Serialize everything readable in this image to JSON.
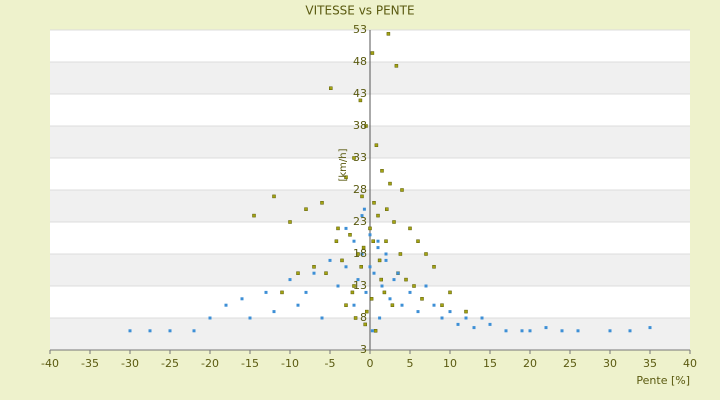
{
  "chart_data": {
    "type": "scatter",
    "title": "VITESSE vs PENTE",
    "x_label": "Pente [%]",
    "y_label": "[km/h]",
    "xlim": [
      -40,
      40
    ],
    "xticks": [
      -40,
      -35,
      -30,
      -25,
      -20,
      -15,
      -10,
      -5,
      0,
      5,
      10,
      15,
      20,
      25,
      30,
      35,
      40
    ],
    "ylim": [
      3,
      53
    ],
    "yticks": [
      3,
      8,
      13,
      18,
      23,
      28,
      33,
      38,
      43,
      48,
      53
    ],
    "series": [
      {
        "color": "#a3a312",
        "x": [
          2.3,
          0.3,
          3.3,
          -4.9,
          -1.2,
          -0.5,
          0.8,
          -2,
          1.5,
          -3,
          2.5,
          4,
          -1,
          0.5,
          -6,
          -8,
          -12,
          -14.5,
          -10,
          -4,
          -2.5,
          1,
          3,
          5,
          6,
          7,
          8,
          2,
          -1.5,
          0,
          -0.8,
          1.2,
          3.5,
          4.5,
          -3.5,
          -5.5,
          -7,
          -9,
          10,
          12,
          -2,
          0.2,
          1.8,
          -0.4,
          2.8,
          -1.8,
          5.5,
          6.5,
          -3,
          -0.6,
          0.7,
          1.4,
          -2.2,
          3.8,
          -4.2,
          9,
          -11,
          2.1,
          -1.1,
          0.4
        ],
        "values": [
          52.4,
          49.4,
          47.4,
          43.9,
          42,
          38,
          35,
          33,
          31,
          30,
          29,
          28,
          27,
          26,
          26,
          25,
          27,
          24,
          23,
          22,
          21,
          24,
          23,
          22,
          20,
          18,
          16,
          20,
          18,
          22,
          19,
          17,
          15,
          14,
          17,
          15,
          16,
          15,
          12,
          9,
          13,
          11,
          12,
          9,
          10,
          8,
          13,
          11,
          10,
          7,
          6,
          14,
          12,
          18,
          20,
          10,
          12,
          25,
          16,
          20
        ]
      },
      {
        "color": "#3d8fd6",
        "x": [
          -30,
          -27.5,
          -25,
          -22,
          -20,
          -18,
          -16,
          -15,
          -13,
          -12,
          -10,
          -9,
          -8,
          -7,
          -6,
          -5,
          -4,
          -3,
          -2,
          -1.5,
          -1,
          -0.5,
          0,
          0.5,
          1,
          1.5,
          2,
          2.5,
          3,
          4,
          5,
          6,
          7,
          8,
          9,
          10,
          11,
          12,
          13,
          14,
          15,
          17,
          19,
          20,
          22,
          24,
          26,
          30,
          35,
          -3,
          -1,
          0,
          1,
          2,
          -2,
          0.3,
          1.2,
          -0.7,
          3.5,
          32.5
        ],
        "values": [
          6,
          6,
          6,
          6,
          8,
          10,
          11,
          8,
          12,
          9,
          14,
          10,
          12,
          15,
          8,
          17,
          13,
          16,
          20,
          14,
          18,
          12,
          16,
          15,
          19,
          13,
          17,
          11,
          14,
          10,
          12,
          9,
          13,
          10,
          8,
          9,
          7,
          8,
          6.5,
          8,
          7,
          6,
          6,
          6,
          6.5,
          6,
          6,
          6,
          6.5,
          22,
          24,
          21,
          20,
          18,
          10,
          6,
          8,
          25,
          15,
          6
        ]
      }
    ]
  }
}
